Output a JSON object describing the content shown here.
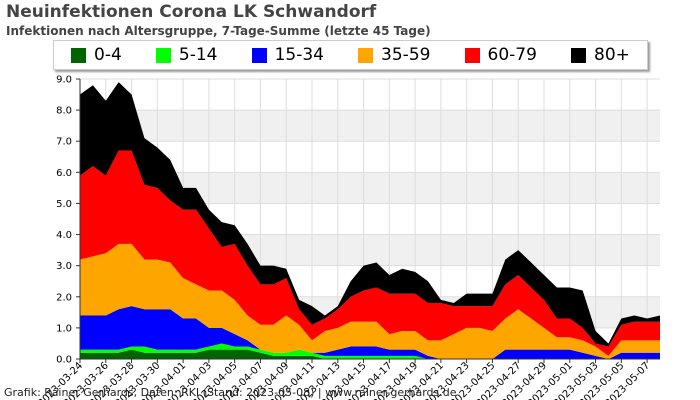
{
  "chart_data": {
    "type": "area",
    "title": "Neuinfektionen Corona LK Schwandorf",
    "subtitle": "Infektionen nach Altersgruppe, 7-Tage-Summe (letzte 45 Tage)",
    "x": [
      "2023-03-24",
      "2023-03-25",
      "2023-03-26",
      "2023-03-27",
      "2023-03-28",
      "2023-03-29",
      "2023-03-30",
      "2023-03-31",
      "2023-04-01",
      "2023-04-02",
      "2023-04-03",
      "2023-04-04",
      "2023-04-05",
      "2023-04-06",
      "2023-04-07",
      "2023-04-08",
      "2023-04-09",
      "2023-04-10",
      "2023-04-11",
      "2023-04-12",
      "2023-04-13",
      "2023-04-14",
      "2023-04-15",
      "2023-04-16",
      "2023-04-17",
      "2023-04-18",
      "2023-04-19",
      "2023-04-20",
      "2023-04-21",
      "2023-04-22",
      "2023-04-23",
      "2023-04-24",
      "2023-04-25",
      "2023-04-26",
      "2023-04-27",
      "2023-04-28",
      "2023-04-29",
      "2023-04-30",
      "2023-05-01",
      "2023-05-02",
      "2023-05-03",
      "2023-05-04",
      "2023-05-05",
      "2023-05-06",
      "2023-05-07",
      "2023-05-08"
    ],
    "x_tick_labels": [
      "2023-03-24",
      "2023-03-26",
      "2023-03-28",
      "2023-03-30",
      "2023-04-01",
      "2023-04-03",
      "2023-04-05",
      "2023-04-07",
      "2023-04-09",
      "2023-04-11",
      "2023-04-13",
      "2023-04-15",
      "2023-04-17",
      "2023-04-19",
      "2023-04-21",
      "2023-04-23",
      "2023-04-25",
      "2023-04-27",
      "2023-04-29",
      "2023-05-01",
      "2023-05-03",
      "2023-05-05",
      "2023-05-07"
    ],
    "ylim": [
      0,
      9
    ],
    "y_ticks": [
      "0.0",
      "1.0",
      "2.0",
      "3.0",
      "4.0",
      "5.0",
      "6.0",
      "7.0",
      "8.0",
      "9.0"
    ],
    "grid": true,
    "legend_position": "top",
    "series": [
      {
        "name": "0-4",
        "color": "#006400",
        "values": [
          0.2,
          0.2,
          0.2,
          0.2,
          0.3,
          0.2,
          0.2,
          0.2,
          0.2,
          0.2,
          0.3,
          0.3,
          0.3,
          0.3,
          0.2,
          0.1,
          0.1,
          0.1,
          0.1,
          0,
          0,
          0,
          0,
          0,
          0,
          0,
          0,
          0,
          0,
          0,
          0,
          0,
          0,
          0,
          0,
          0,
          0,
          0,
          0,
          0,
          0,
          0,
          0,
          0,
          0,
          0
        ]
      },
      {
        "name": "5-14",
        "color": "#00ff00",
        "values": [
          0.1,
          0.1,
          0.1,
          0.1,
          0.1,
          0.2,
          0.1,
          0.1,
          0.1,
          0.1,
          0.1,
          0.2,
          0.1,
          0.1,
          0.1,
          0.1,
          0.1,
          0.2,
          0.1,
          0.1,
          0.1,
          0.1,
          0.1,
          0.1,
          0.1,
          0.1,
          0.1,
          0,
          0,
          0,
          0,
          0,
          0,
          0,
          0,
          0,
          0,
          0,
          0,
          0,
          0,
          0,
          0,
          0,
          0,
          0
        ]
      },
      {
        "name": "15-34",
        "color": "#0000ff",
        "values": [
          1.1,
          1.1,
          1.1,
          1.3,
          1.3,
          1.2,
          1.3,
          1.3,
          1.0,
          1.0,
          0.6,
          0.5,
          0.4,
          0.2,
          0,
          0,
          0,
          0,
          0,
          0.1,
          0.2,
          0.3,
          0.3,
          0.3,
          0.2,
          0.2,
          0.2,
          0.1,
          0,
          0,
          0,
          0,
          0,
          0.3,
          0.3,
          0.3,
          0.3,
          0.3,
          0.3,
          0.2,
          0.1,
          0,
          0.2,
          0.2,
          0.2,
          0.2
        ]
      },
      {
        "name": "35-59",
        "color": "#ffa500",
        "values": [
          1.8,
          1.9,
          2.0,
          2.1,
          2.0,
          1.6,
          1.6,
          1.5,
          1.3,
          1.1,
          1.2,
          1.2,
          1.1,
          0.8,
          0.8,
          0.9,
          1.2,
          0.8,
          0.4,
          0.7,
          0.7,
          0.8,
          0.8,
          0.8,
          0.5,
          0.6,
          0.6,
          0.5,
          0.6,
          0.8,
          1.0,
          1.0,
          0.9,
          1.0,
          1.3,
          1.0,
          0.7,
          0.4,
          0.4,
          0.4,
          0.3,
          0.1,
          0.4,
          0.4,
          0.4,
          0.4
        ]
      },
      {
        "name": "60-79",
        "color": "#ff0000",
        "values": [
          2.7,
          2.9,
          2.5,
          3.0,
          3.0,
          2.4,
          2.3,
          2.0,
          2.2,
          2.4,
          2.0,
          1.4,
          1.8,
          1.6,
          1.3,
          1.3,
          1.2,
          0.5,
          0.5,
          0.4,
          0.6,
          0.8,
          1.0,
          1.1,
          1.3,
          1.2,
          1.2,
          1.2,
          1.2,
          0.9,
          0.7,
          0.7,
          0.8,
          1.1,
          1.1,
          1.0,
          0.9,
          0.6,
          0.6,
          0.4,
          0.1,
          0.3,
          0.5,
          0.6,
          0.6,
          0.6
        ]
      },
      {
        "name": "80+",
        "color": "#000000",
        "values": [
          2.6,
          2.6,
          2.4,
          2.2,
          1.8,
          1.5,
          1.3,
          1.3,
          0.7,
          0.7,
          0.6,
          0.8,
          0.6,
          0.7,
          0.6,
          0.6,
          0.3,
          0.3,
          0.6,
          0.1,
          0.1,
          0.5,
          0.8,
          0.8,
          0.6,
          0.8,
          0.7,
          0.7,
          0.1,
          0.1,
          0.4,
          0.4,
          0.4,
          0.8,
          0.8,
          0.8,
          0.8,
          1.0,
          1.0,
          1.2,
          0.4,
          0.1,
          0.2,
          0.2,
          0.1,
          0.2
        ]
      }
    ]
  },
  "credit": "Grafik: Rainer Gerhards, Daten: RKI (Stand: 2023-05-08) | www.rainer-gerhards.de"
}
